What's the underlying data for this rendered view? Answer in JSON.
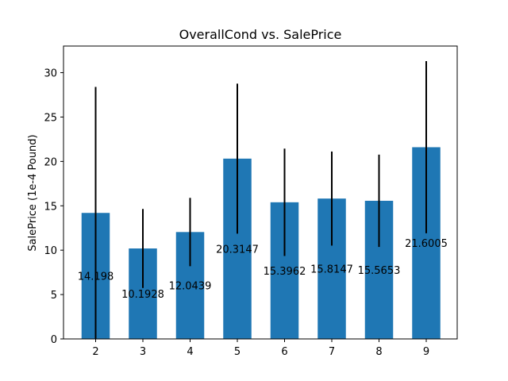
{
  "chart_data": {
    "type": "bar",
    "title": "OverallCond vs. SalePrice",
    "xlabel": "",
    "ylabel": "SalePrice (1e-4 Pound)",
    "categories": [
      "2",
      "3",
      "4",
      "5",
      "6",
      "7",
      "8",
      "9"
    ],
    "values": [
      14.198,
      10.1928,
      12.0439,
      20.3147,
      15.3962,
      15.8147,
      15.5653,
      21.6005
    ],
    "value_labels": [
      "14.198",
      "10.1928",
      "12.0439",
      "20.3147",
      "15.3962",
      "15.8147",
      "15.5653",
      "21.6005"
    ],
    "error": [
      14.2,
      4.45,
      3.85,
      8.45,
      6.05,
      5.3,
      5.2,
      9.7
    ],
    "ylim": [
      0,
      33
    ],
    "yticks": [
      0,
      5,
      10,
      15,
      20,
      25,
      30
    ],
    "bar_color": "#1f77b4",
    "error_color": "#000000",
    "grid": false
  }
}
